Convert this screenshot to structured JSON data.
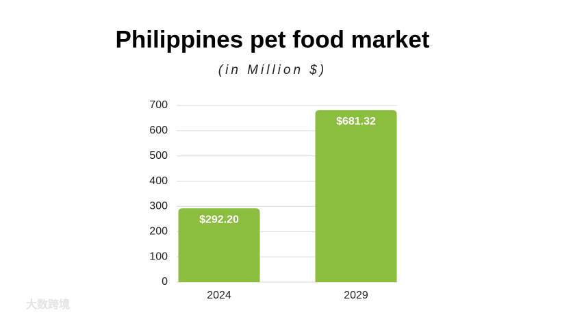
{
  "chart_data": {
    "type": "bar",
    "title": "Philippines pet food market",
    "subtitle": "(in Million $)",
    "categories": [
      "2024",
      "2029"
    ],
    "values": [
      292.2,
      681.32
    ],
    "value_labels": [
      "$292.20",
      "$681.32"
    ],
    "color": "#8bbd3f",
    "ylim": [
      0,
      700
    ],
    "yticks": [
      0,
      100,
      200,
      300,
      400,
      500,
      600,
      700
    ],
    "grid": true,
    "watermark": "大数跨境"
  }
}
